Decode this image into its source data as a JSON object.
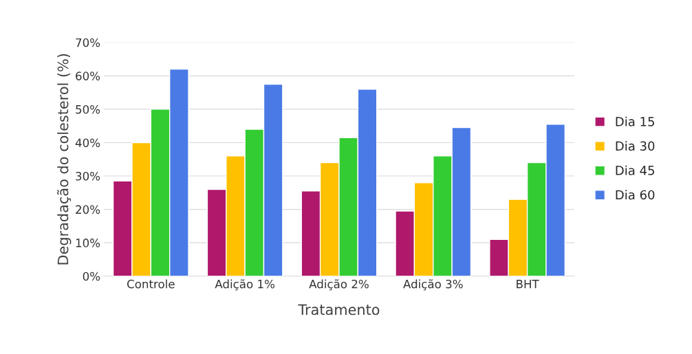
{
  "chart_data": {
    "type": "bar",
    "xlabel": "Tratamento",
    "ylabel": "Degradação do colesterol (%)",
    "categories": [
      "Controle",
      "Adição 1%",
      "Adição 2%",
      "Adição 3%",
      "BHT"
    ],
    "series": [
      {
        "name": "Dia 15",
        "color": "#b0186b",
        "values": [
          28.5,
          26,
          25.5,
          19.5,
          11
        ]
      },
      {
        "name": "Dia 30",
        "color": "#ffc000",
        "values": [
          40,
          36,
          34,
          28,
          23
        ]
      },
      {
        "name": "Dia 45",
        "color": "#33cc33",
        "values": [
          50,
          44,
          41.5,
          36,
          34
        ]
      },
      {
        "name": "Dia 60",
        "color": "#4a7ae6",
        "values": [
          62,
          57.5,
          56,
          44.5,
          45.5
        ]
      }
    ],
    "ylim": [
      0,
      70
    ],
    "yticks": [
      {
        "value": 0,
        "label": "0%"
      },
      {
        "value": 10,
        "label": "10%"
      },
      {
        "value": 20,
        "label": "20%"
      },
      {
        "value": 30,
        "label": "30%"
      },
      {
        "value": 40,
        "label": "40%"
      },
      {
        "value": 50,
        "label": "50%"
      },
      {
        "value": 60,
        "label": "60%"
      },
      {
        "value": 70,
        "label": "70%"
      }
    ],
    "grid": "y",
    "legend": "right"
  }
}
